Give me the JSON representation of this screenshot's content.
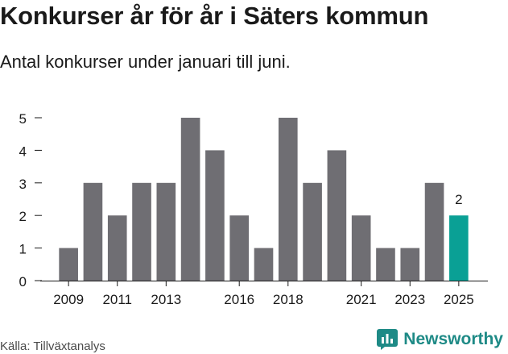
{
  "header": {
    "title": "Konkurser år för år i Säters kommun",
    "subtitle": "Antal konkurser under januari till juni."
  },
  "footer": {
    "source": "Källa: Tillväxtanalys",
    "brand": "Newsworthy",
    "brand_icon": "newsworthy-logo-icon"
  },
  "colors": {
    "bar": "#6f6e73",
    "highlight": "#0aa095",
    "axis": "#1a1a1a",
    "brand": "#1e8a86"
  },
  "chart_data": {
    "type": "bar",
    "categories": [
      "2009",
      "2010",
      "2011",
      "2012",
      "2013",
      "2014",
      "2015",
      "2016",
      "2017",
      "2018",
      "2019",
      "2020",
      "2021",
      "2022",
      "2023",
      "2024",
      "2025"
    ],
    "values": [
      1,
      3,
      2,
      3,
      3,
      5,
      4,
      2,
      1,
      5,
      3,
      4,
      2,
      1,
      1,
      3,
      2
    ],
    "x_tick_labels": [
      "2009",
      "2011",
      "2013",
      "2016",
      "2018",
      "2021",
      "2023",
      "2025"
    ],
    "y_ticks": [
      0,
      1,
      2,
      3,
      4,
      5
    ],
    "ylim": [
      0,
      5
    ],
    "highlight_category": "2025",
    "data_labels": [
      {
        "category": "2025",
        "text": "2"
      }
    ],
    "title": "Konkurser år för år i Säters kommun",
    "xlabel": "",
    "ylabel": "",
    "grid": false,
    "legend": "none"
  }
}
